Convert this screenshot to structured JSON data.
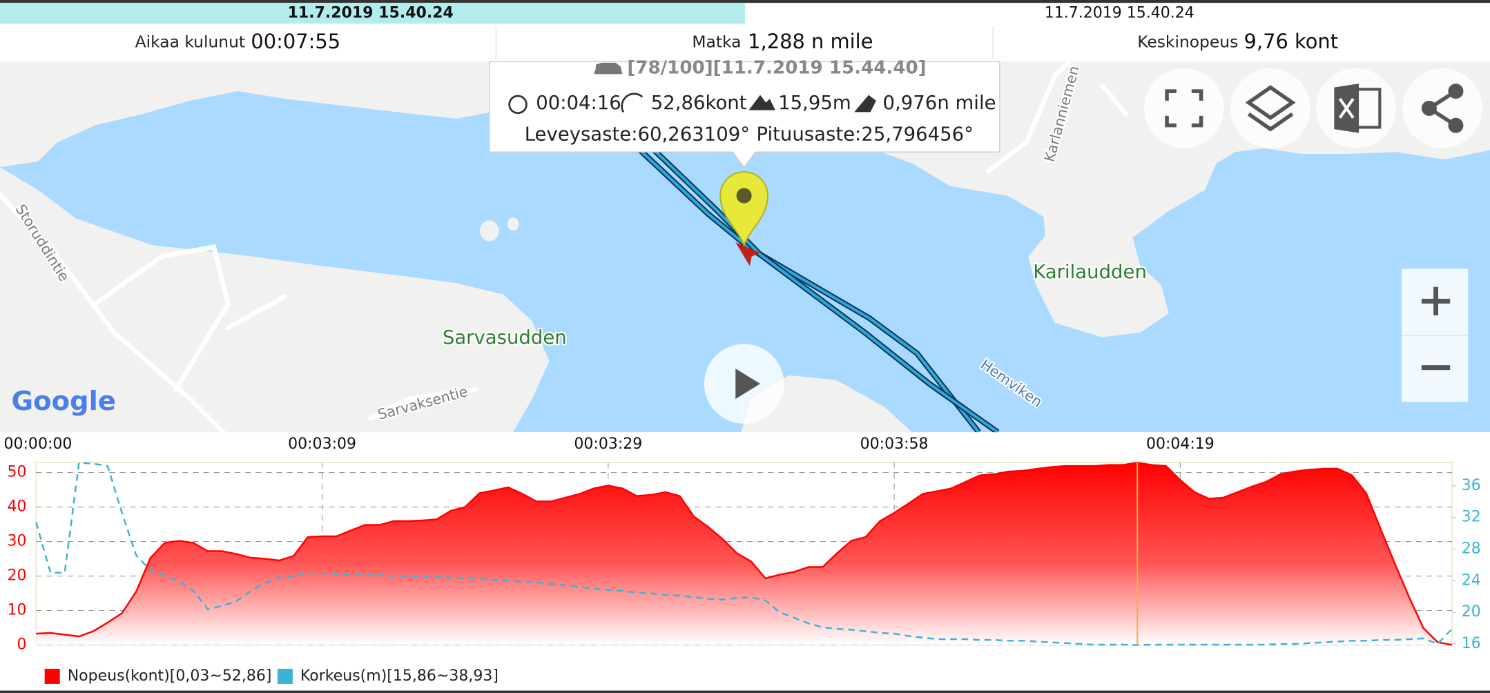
{
  "header": {
    "progress_time": "11.7.2019 15.40.24",
    "end_time": "11.7.2019 15.40.24"
  },
  "stats": [
    {
      "label": "Aikaa kulunut",
      "value": "00:07:55"
    },
    {
      "label": "Matka",
      "value": "1,288 n mile"
    },
    {
      "label": "Keskinopeus",
      "value": "9,76 kont"
    }
  ],
  "map": {
    "labels": {
      "storuddintie": "Storuddintie",
      "sarvasudden": "Sarvasudden",
      "karilaudden": "Karilaudden",
      "sarvaksentie": "Sarvaksentie",
      "hemviken": "Hemviken",
      "karlanniementie": "Karlanniemen"
    },
    "logo": "Google",
    "popup": {
      "title": "[78/100][11.7.2019 15.44.40]",
      "time": "00:04:16",
      "speed": "52,86kont",
      "altitude": "15,95m",
      "distance": "0,976n mile",
      "latitude": "Leveysaste:60,263109°",
      "longitude": "Pituusaste:25,796456°"
    }
  },
  "chart_data": {
    "type": "area",
    "categories": [
      "00:00:00",
      null,
      null,
      null,
      null,
      null,
      null,
      null,
      null,
      null,
      null,
      null,
      null,
      null,
      null,
      null,
      null,
      null,
      null,
      null,
      "00:03:09",
      null,
      null,
      null,
      null,
      null,
      null,
      null,
      null,
      null,
      null,
      null,
      null,
      null,
      null,
      null,
      null,
      null,
      null,
      null,
      "00:03:29",
      null,
      null,
      null,
      null,
      null,
      null,
      null,
      null,
      null,
      null,
      null,
      null,
      null,
      null,
      null,
      null,
      null,
      null,
      null,
      "00:03:58",
      null,
      null,
      null,
      null,
      null,
      null,
      null,
      null,
      null,
      null,
      null,
      null,
      null,
      null,
      null,
      null,
      null,
      null,
      null,
      "00:04:19",
      null,
      null,
      null,
      null,
      null,
      null,
      null,
      null,
      null,
      null,
      null,
      null,
      null,
      null,
      null,
      null,
      null,
      null,
      null
    ],
    "series": [
      {
        "name": "Nopeus(kont)[0,03~52,86]",
        "color": "#ff0000",
        "values": [
          3.3,
          3.5,
          3.0,
          2.5,
          4,
          6.5,
          9.2,
          15.5,
          25.3,
          29.6,
          30.2,
          29.6,
          27.2,
          27.2,
          26.4,
          25.3,
          25,
          24.5,
          25.8,
          31.3,
          31.5,
          31.5,
          33.2,
          34.8,
          34.8,
          35.9,
          35.9,
          36.1,
          36.4,
          38.9,
          40,
          44,
          44.8,
          45.7,
          43.8,
          41.6,
          41.6,
          42.7,
          43.8,
          45.4,
          46.2,
          45.4,
          43.2,
          43.5,
          44.3,
          43.2,
          37.2,
          34.2,
          30.7,
          26.6,
          24.2,
          19.3,
          20.4,
          21.2,
          22.6,
          22.6,
          26.6,
          30.2,
          31.3,
          35.9,
          38.3,
          41,
          43.8,
          44.6,
          45.4,
          47.3,
          49.2,
          49.5,
          50.3,
          50.5,
          51.1,
          51.6,
          51.9,
          51.9,
          51.9,
          52.2,
          52.2,
          52.86,
          52.2,
          51.9,
          47.8,
          44.3,
          42.4,
          42.7,
          44.3,
          45.9,
          47.3,
          49.5,
          50.3,
          50.8,
          51.1,
          51.1,
          49.2,
          44,
          33.7,
          23.6,
          13.9,
          4.9,
          0.8,
          0.03
        ]
      },
      {
        "name": "Korkeus(m)[15,86~38,93]",
        "color": "#3bb4d4",
        "axis": "y2",
        "line_style": "dashed",
        "values": [
          31.4,
          25,
          25,
          38.93,
          38.8,
          38.5,
          32.6,
          27.2,
          25.3,
          24.6,
          23.9,
          22.7,
          20.4,
          20.8,
          21.4,
          22.7,
          23.7,
          24.4,
          24.6,
          24.9,
          24.9,
          24.8,
          24.8,
          24.7,
          24.7,
          24.6,
          24.6,
          24.5,
          24.5,
          24.4,
          24.3,
          24.2,
          24.1,
          24,
          23.9,
          23.8,
          23.6,
          23.4,
          23.2,
          23.0,
          22.8,
          22.7,
          22.5,
          22.4,
          22.2,
          22.1,
          21.9,
          21.7,
          21.6,
          21.8,
          21.9,
          21.5,
          20.0,
          19.3,
          18.6,
          18.1,
          17.9,
          17.8,
          17.6,
          17.4,
          17.3,
          17.0,
          16.8,
          16.6,
          16.6,
          16.6,
          16.5,
          16.5,
          16.4,
          16.4,
          16.3,
          16.2,
          16.1,
          16.0,
          15.9,
          15.9,
          15.9,
          15.86,
          15.9,
          15.9,
          15.9,
          15.9,
          15.9,
          15.9,
          15.9,
          15.9,
          15.9,
          16,
          16,
          16.1,
          16.2,
          16.3,
          16.4,
          16.4,
          16.5,
          16.5,
          16.6,
          16.7,
          16,
          17.9
        ]
      }
    ],
    "ylim": [
      0,
      52.86
    ],
    "yticks": [
      0,
      10,
      20,
      30,
      40,
      50
    ],
    "y2lim": [
      15.86,
      38.93
    ],
    "y2ticks": [
      16,
      20,
      24,
      28,
      32,
      36
    ],
    "grid": true,
    "cursor_index": 77,
    "cursor_color": "#f5b041"
  }
}
